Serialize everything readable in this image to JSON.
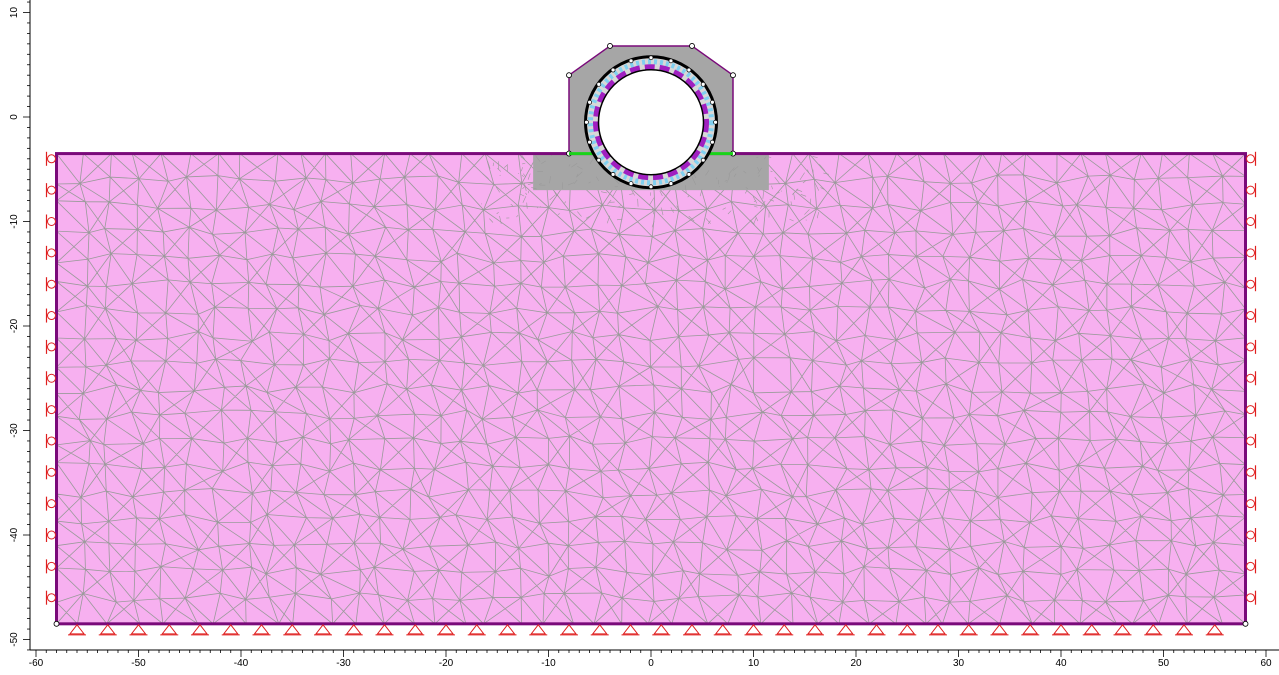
{
  "app": {
    "view": "finite element mesh"
  },
  "axes": {
    "x_ticks": [
      -60,
      -50,
      -40,
      -30,
      -20,
      -10,
      0,
      10,
      20,
      30,
      40,
      50,
      60
    ],
    "x_tick_labels": [
      "-60",
      "-50",
      "-40",
      "-30",
      "-20",
      "-10",
      "0",
      "10",
      "20",
      "30",
      "40",
      "50",
      "60"
    ],
    "y_ticks": [
      10,
      0,
      -10,
      -20,
      -30,
      -40,
      -50
    ],
    "y_tick_labels": [
      "10",
      "0",
      "-10",
      "-20",
      "-30",
      "-40",
      "-50"
    ]
  },
  "colors": {
    "soil_fill": "#f7b0f0",
    "boundary": "#7a0a7a",
    "mesh_line": "#9a9a9a",
    "embankment_fill": "#a6a6a6",
    "interface": "#19d319",
    "support": "#e02020",
    "lining": "#a020c0",
    "cyan_marks": "#80d0f0"
  },
  "model": {
    "domain_x": [
      -58,
      58
    ],
    "domain_y": [
      -48.5,
      -3.5
    ],
    "tunnel_center": [
      0,
      -0.5
    ],
    "tunnel_radius": 6.0,
    "embankment_poly": [
      [
        -8,
        -3.5
      ],
      [
        -8,
        4
      ],
      [
        -4,
        6.8
      ],
      [
        4,
        6.8
      ],
      [
        8,
        4
      ],
      [
        8,
        -3.5
      ]
    ],
    "refined_zone": [
      [
        -11.5,
        -3.5
      ],
      [
        11.5,
        -3.5
      ],
      [
        11.5,
        -7
      ],
      [
        -11.5,
        -7
      ]
    ]
  },
  "icons": {
    "left_support": "roller-icon",
    "bottom_support": "pin-triangle-icon"
  }
}
